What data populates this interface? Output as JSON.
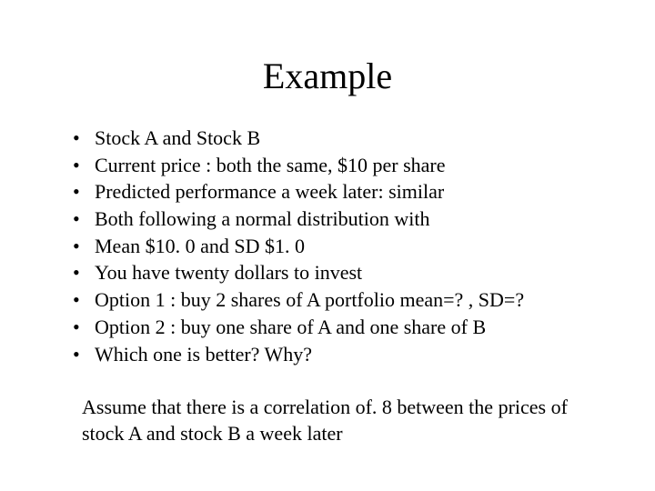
{
  "title": "Example",
  "bullets": [
    "Stock A and Stock B",
    "Current price :  both the same, $10 per share",
    "Predicted performance a week later: similar",
    "Both following a normal distribution with",
    "Mean $10. 0 and SD $1. 0",
    "You have twenty dollars to invest",
    "Option 1 :  buy 2 shares of A    portfolio mean=? , SD=?",
    "Option 2 : buy one share of A and one share of B",
    "Which one is better? Why?"
  ],
  "footer": "Assume that there is a correlation of. 8 between the prices of stock A and stock B a week later",
  "styling": {
    "background_color": "#ffffff",
    "text_color": "#000000",
    "font_family": "Times New Roman",
    "title_fontsize": 40,
    "body_fontsize": 22,
    "slide_width": 720,
    "slide_height": 540
  }
}
